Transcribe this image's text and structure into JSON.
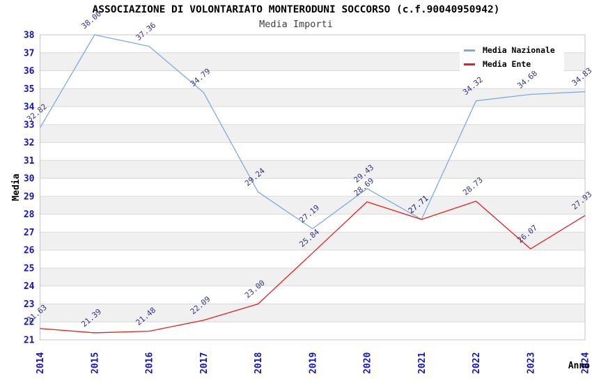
{
  "chart_data": {
    "type": "line",
    "title": "ASSOCIAZIONE DI VOLONTARIATO MONTERODUNI SOCCORSO (c.f.90040950942)",
    "subtitle": "Media Importi",
    "xlabel": "Anno",
    "ylabel": "Media",
    "x": [
      "2014",
      "2015",
      "2016",
      "2017",
      "2018",
      "2019",
      "2020",
      "2021",
      "2022",
      "2023",
      "2024"
    ],
    "ylim": [
      21,
      38
    ],
    "y_tick_step": 1,
    "grid": "horizontal-only",
    "alternating_bands": true,
    "legend_position": "top-right-inside",
    "label_decimals": 2,
    "series": [
      {
        "name": "Media Nazionale",
        "color": "#7cacdf",
        "values": [
          32.82,
          38.0,
          37.36,
          34.79,
          29.24,
          27.19,
          29.43,
          27.71,
          34.32,
          34.68,
          34.83
        ]
      },
      {
        "name": "Media Ente",
        "color": "#e81e1e",
        "values": [
          21.63,
          21.39,
          21.48,
          22.09,
          23.0,
          25.84,
          28.69,
          27.71,
          28.73,
          26.07,
          27.93
        ]
      }
    ]
  },
  "colors": {
    "axis_tick_label": "#1212cc",
    "data_label": "#333388",
    "band": "#f0f0f0",
    "gridline": "#d9d9d9",
    "plot_border": "#c6c6c6",
    "background": "#ffffff",
    "title": "#000000",
    "subtitle": "#3f3f3f"
  }
}
